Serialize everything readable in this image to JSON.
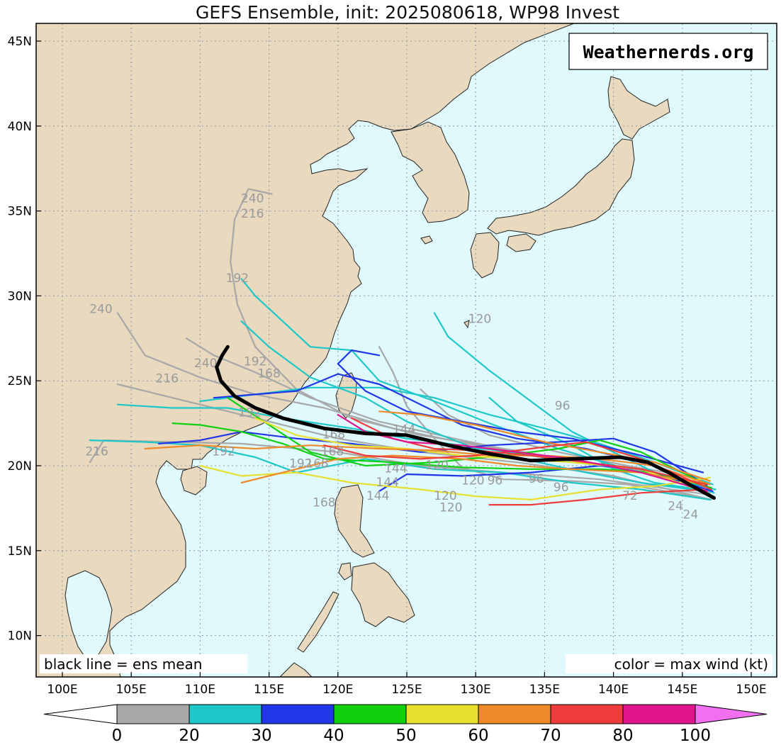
{
  "title": "GEFS Ensemble, init: 2025080618, WP98 Invest",
  "watermark": "Weathernerds.org",
  "note_left": "black line = ens mean",
  "note_right": "color = max wind (kt)",
  "map": {
    "lon_labels": [
      "100E",
      "105E",
      "110E",
      "115E",
      "120E",
      "125E",
      "130E",
      "135E",
      "140E",
      "145E",
      "150E"
    ],
    "lat_labels": [
      "45N",
      "40N",
      "35N",
      "30N",
      "25N",
      "20N",
      "15N",
      "10N"
    ],
    "land_color": "#e8d9bf",
    "ocean_color": "#dff9fd"
  },
  "colorbar": {
    "labels": [
      "0",
      "20",
      "30",
      "40",
      "50",
      "60",
      "70",
      "80",
      "100"
    ],
    "colors": [
      "#ffffff",
      "#a8a8a8",
      "#1ec8c8",
      "#2036e8",
      "#10d010",
      "#e8e030",
      "#ee8a28",
      "#ee3c3c",
      "#e0148c",
      "#f070f0"
    ]
  },
  "hour_labels": [
    {
      "text": "240",
      "lon": 113.8,
      "lat": 35.5
    },
    {
      "text": "216",
      "lon": 113.8,
      "lat": 34.6
    },
    {
      "text": "192",
      "lon": 112.7,
      "lat": 30.8
    },
    {
      "text": "240",
      "lon": 102.8,
      "lat": 29.0
    },
    {
      "text": "192",
      "lon": 114.0,
      "lat": 25.9
    },
    {
      "text": "168",
      "lon": 115.0,
      "lat": 25.2
    },
    {
      "text": "240",
      "lon": 110.4,
      "lat": 25.8
    },
    {
      "text": "216",
      "lon": 107.6,
      "lat": 24.9
    },
    {
      "text": "192",
      "lon": 113.6,
      "lat": 22.9
    },
    {
      "text": "120",
      "lon": 130.3,
      "lat": 28.4
    },
    {
      "text": "96",
      "lon": 136.3,
      "lat": 23.3
    },
    {
      "text": "144",
      "lon": 124.8,
      "lat": 21.9
    },
    {
      "text": "168",
      "lon": 119.7,
      "lat": 21.6
    },
    {
      "text": "168",
      "lon": 119.6,
      "lat": 20.6
    },
    {
      "text": "192",
      "lon": 111.7,
      "lat": 20.6
    },
    {
      "text": "216",
      "lon": 102.5,
      "lat": 20.6
    },
    {
      "text": "192",
      "lon": 117.3,
      "lat": 19.9
    },
    {
      "text": "168",
      "lon": 118.5,
      "lat": 19.9
    },
    {
      "text": "144",
      "lon": 124.2,
      "lat": 19.6
    },
    {
      "text": "120",
      "lon": 127.2,
      "lat": 19.8
    },
    {
      "text": "144",
      "lon": 123.6,
      "lat": 18.8
    },
    {
      "text": "120",
      "lon": 129.8,
      "lat": 18.9
    },
    {
      "text": "96",
      "lon": 131.4,
      "lat": 18.9
    },
    {
      "text": "96",
      "lon": 134.4,
      "lat": 19.0
    },
    {
      "text": "96",
      "lon": 136.2,
      "lat": 18.5
    },
    {
      "text": "144",
      "lon": 122.9,
      "lat": 18.0
    },
    {
      "text": "120",
      "lon": 127.8,
      "lat": 18.0
    },
    {
      "text": "168",
      "lon": 119.0,
      "lat": 17.6
    },
    {
      "text": "120",
      "lon": 128.2,
      "lat": 17.3
    },
    {
      "text": "72",
      "lon": 141.2,
      "lat": 18.0
    },
    {
      "text": "24",
      "lon": 144.5,
      "lat": 17.4
    },
    {
      "text": "24",
      "lon": 145.6,
      "lat": 16.9
    }
  ]
}
